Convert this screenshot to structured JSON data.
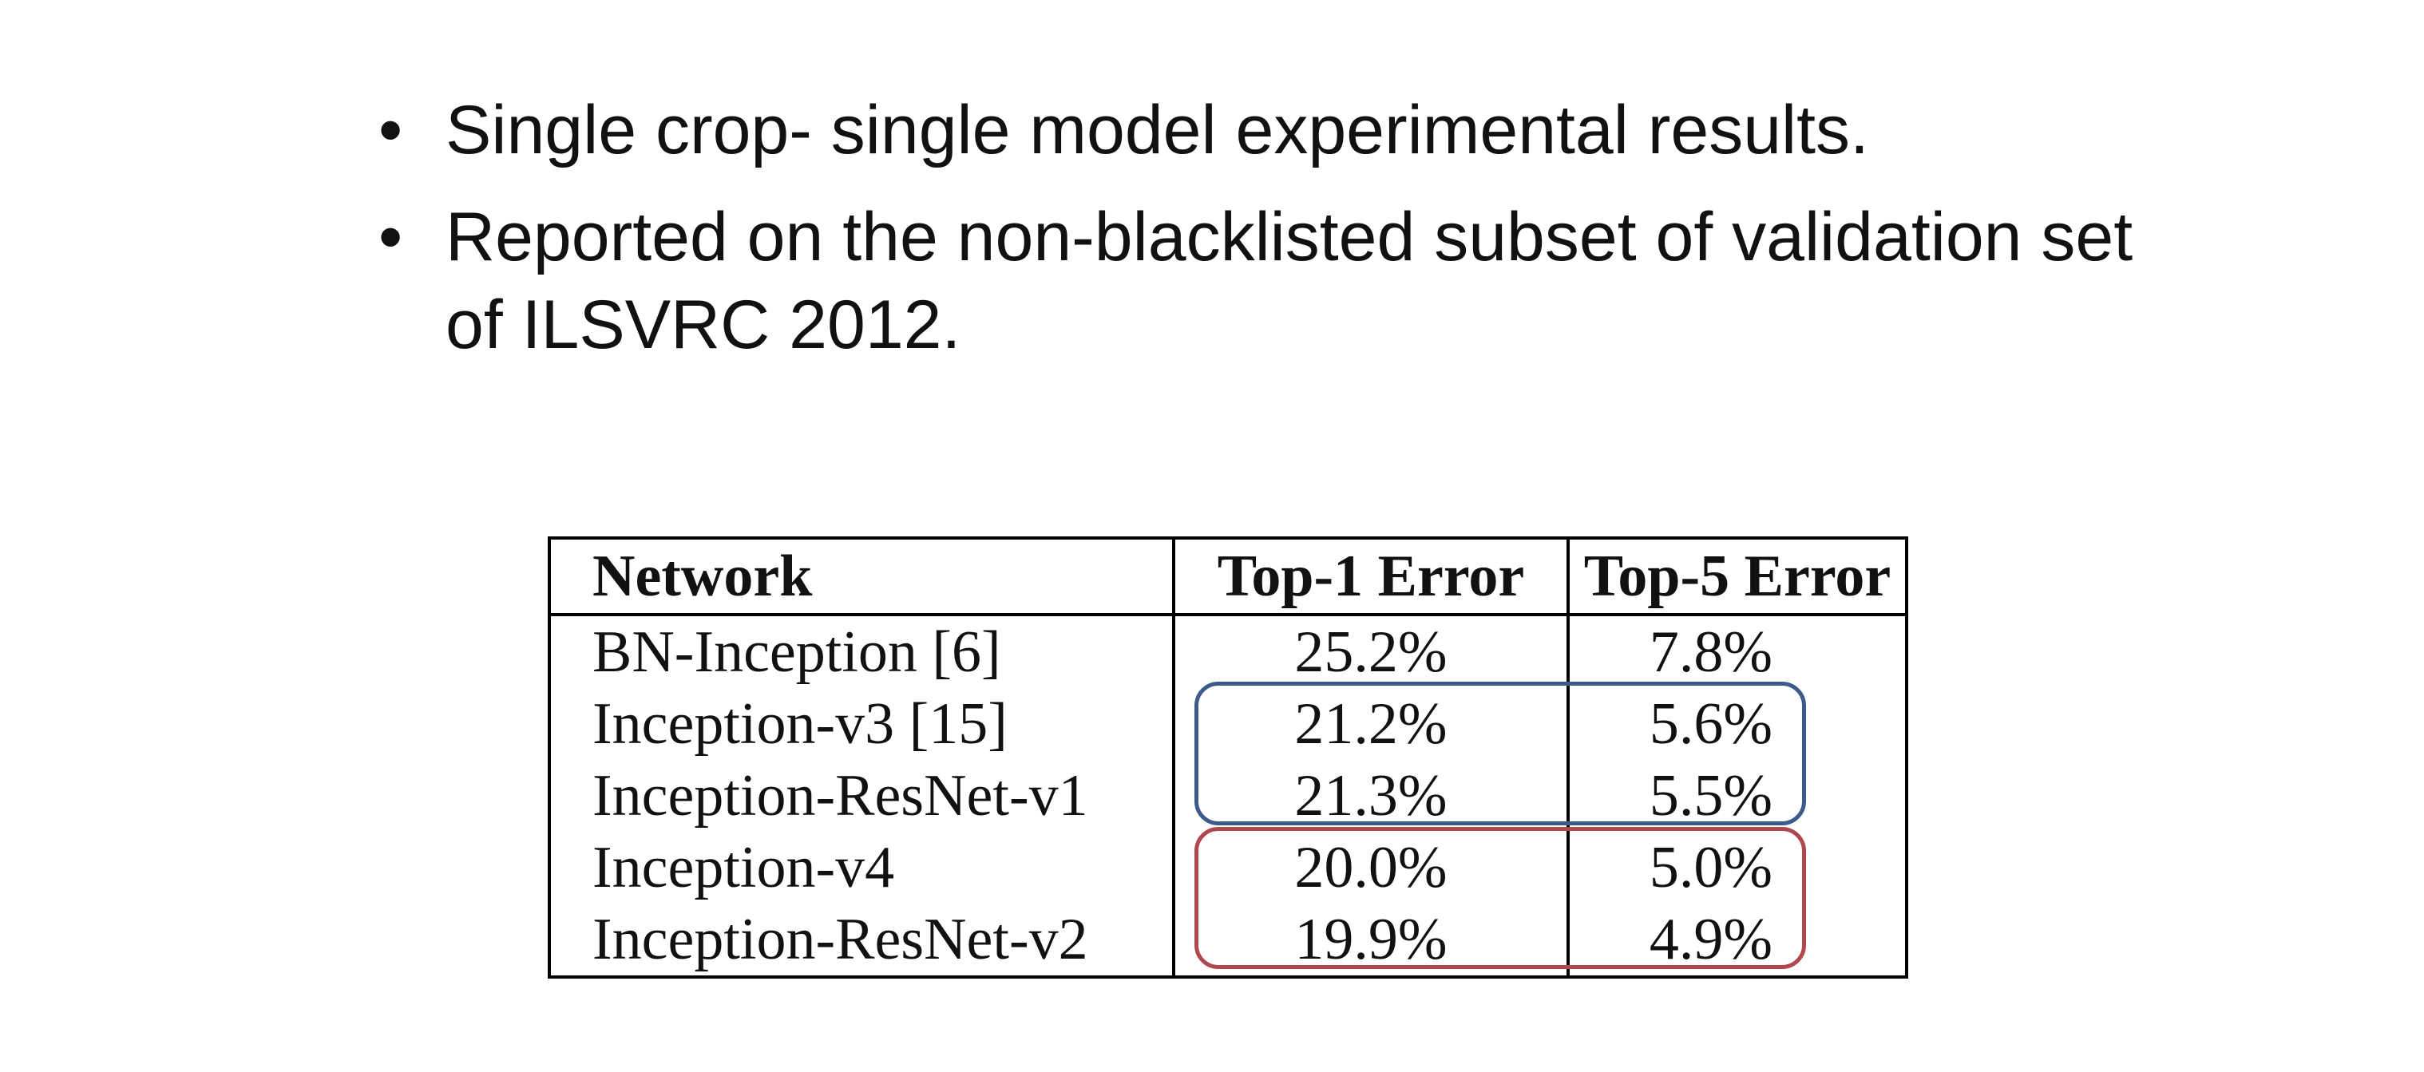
{
  "bullets": [
    "Single crop- single model experimental results.",
    "Reported on the non-blacklisted subset of validation set of ILSVRC 2012."
  ],
  "table": {
    "headers": [
      "Network",
      "Top-1 Error",
      "Top-5 Error"
    ],
    "rows": [
      [
        "BN-Inception [6]",
        "25.2%",
        "7.8%"
      ],
      [
        "Inception-v3 [15]",
        "21.2%",
        "5.6%"
      ],
      [
        "Inception-ResNet-v1",
        "21.3%",
        "5.5%"
      ],
      [
        "Inception-v4",
        "20.0%",
        "5.0%"
      ],
      [
        "Inception-ResNet-v2",
        "19.9%",
        "4.9%"
      ]
    ]
  },
  "highlights": {
    "group1_color": "#3c5a8c",
    "group2_color": "#b0474f"
  }
}
